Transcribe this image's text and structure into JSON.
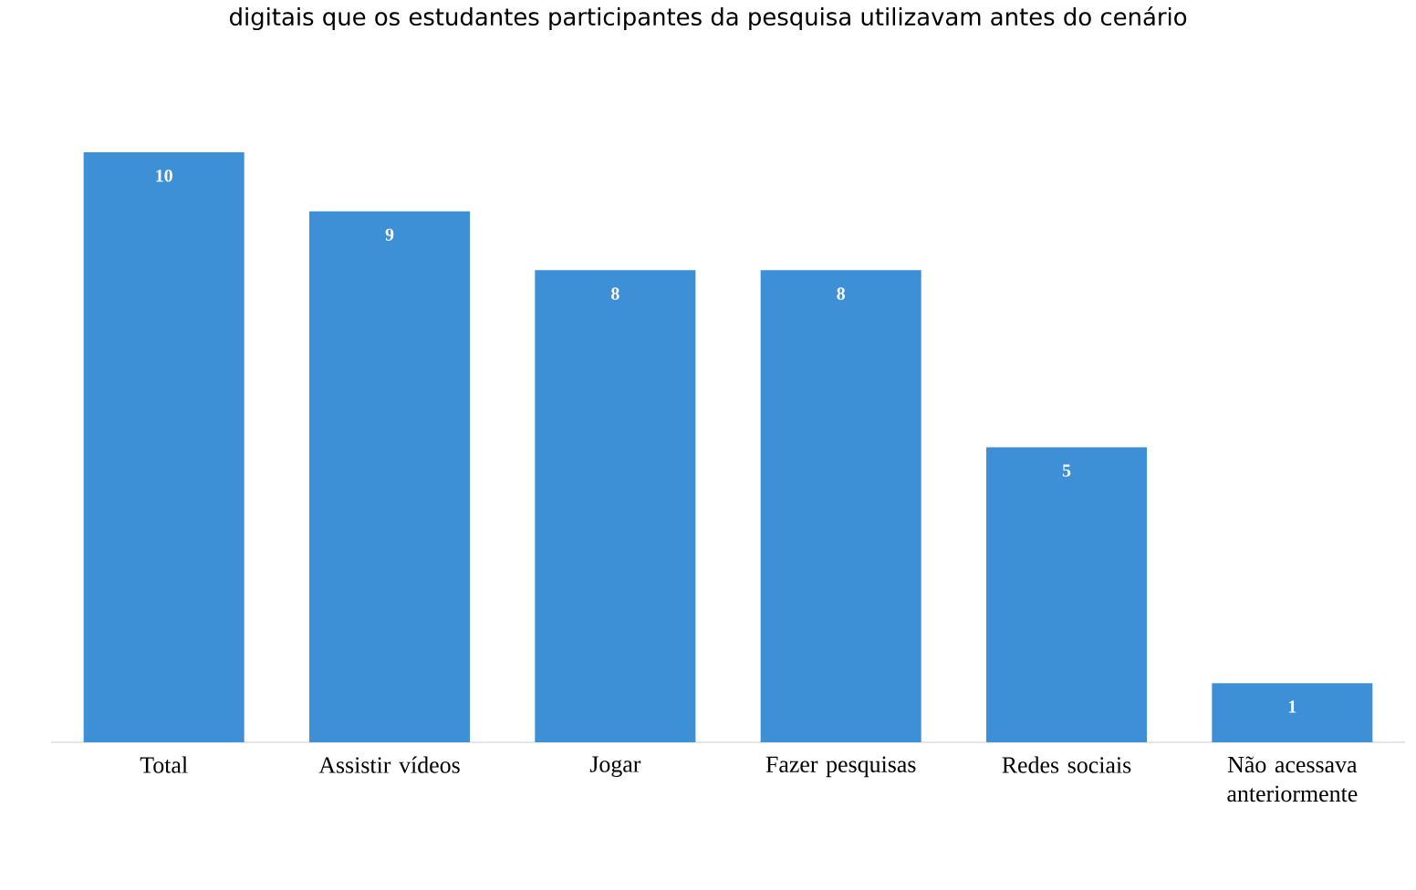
{
  "chart_data": {
    "type": "bar",
    "title": "digitais que os estudantes participantes da pesquisa utilizavam antes do cenário",
    "categories": [
      "Total",
      "Assistir vídeos",
      "Jogar",
      "Fazer pesquisas",
      "Redes sociais",
      "Não acessava anteriormente"
    ],
    "values": [
      10,
      9,
      8,
      8,
      5,
      1
    ],
    "color": "#3d8fd6",
    "data_labels": true
  }
}
